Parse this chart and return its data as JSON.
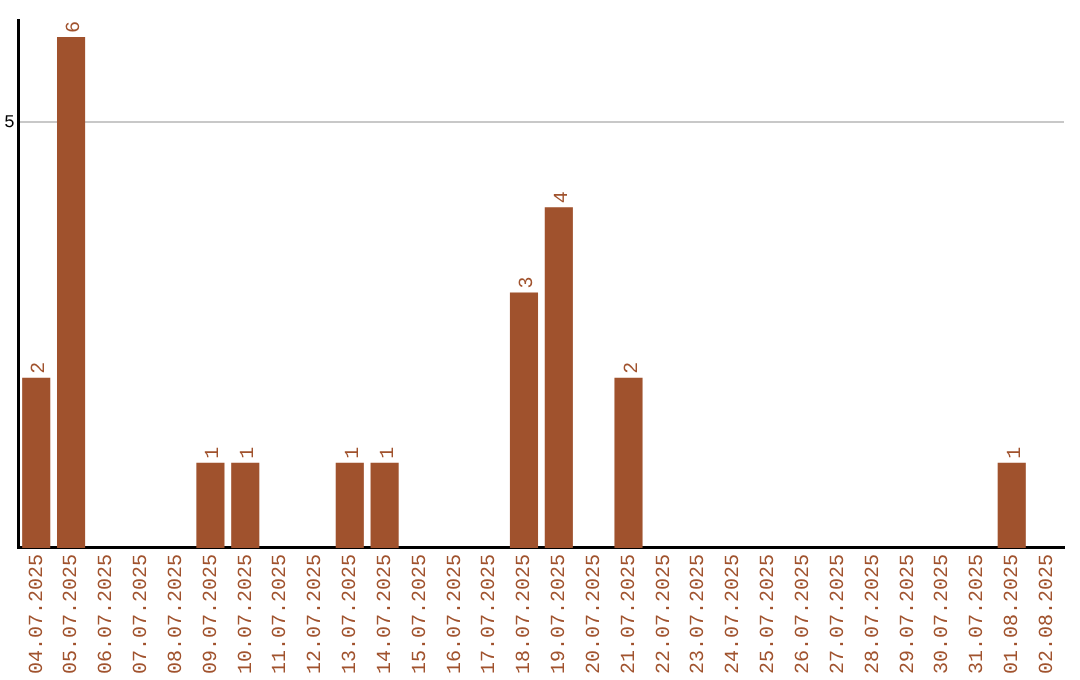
{
  "chart_data": {
    "type": "bar",
    "categories": [
      "04.07.2025",
      "05.07.2025",
      "06.07.2025",
      "07.07.2025",
      "08.07.2025",
      "09.07.2025",
      "10.07.2025",
      "11.07.2025",
      "12.07.2025",
      "13.07.2025",
      "14.07.2025",
      "15.07.2025",
      "16.07.2025",
      "17.07.2025",
      "18.07.2025",
      "19.07.2025",
      "20.07.2025",
      "21.07.2025",
      "22.07.2025",
      "23.07.2025",
      "24.07.2025",
      "25.07.2025",
      "26.07.2025",
      "27.07.2025",
      "28.07.2025",
      "29.07.2025",
      "30.07.2025",
      "31.07.2025",
      "01.08.2025",
      "02.08.2025"
    ],
    "values": [
      2,
      6,
      0,
      0,
      0,
      1,
      1,
      0,
      0,
      1,
      1,
      0,
      0,
      0,
      3,
      4,
      0,
      2,
      0,
      0,
      0,
      0,
      0,
      0,
      0,
      0,
      0,
      0,
      1,
      0
    ],
    "value_labels": [
      "2",
      "6",
      null,
      null,
      null,
      "1",
      "1",
      null,
      null,
      "1",
      "1",
      null,
      null,
      null,
      "3",
      "4",
      null,
      "2",
      null,
      null,
      null,
      null,
      null,
      null,
      null,
      null,
      null,
      null,
      "1",
      null
    ],
    "color": "#a0522d",
    "ylim": [
      0,
      6.2
    ],
    "yticks": [
      5
    ],
    "grid": "y",
    "legend": false
  }
}
